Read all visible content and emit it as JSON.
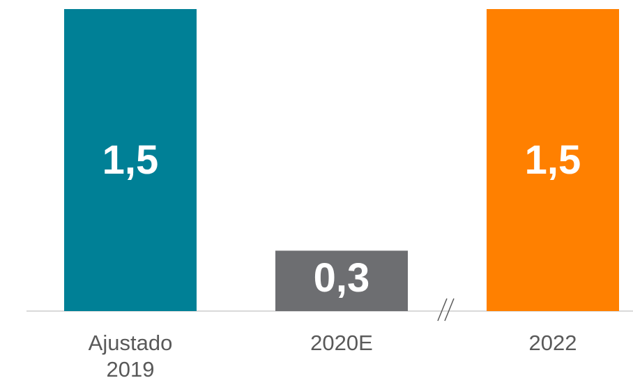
{
  "chart_data": {
    "type": "bar",
    "categories": [
      "Ajustado\n2019",
      "2020E",
      "2022"
    ],
    "values": [
      1.5,
      0.3,
      1.5
    ],
    "value_labels": [
      "1,5",
      "0,3",
      "1,5"
    ],
    "colors": [
      "#008096",
      "#6d6e71",
      "#ff8000"
    ],
    "axis_break": true
  }
}
